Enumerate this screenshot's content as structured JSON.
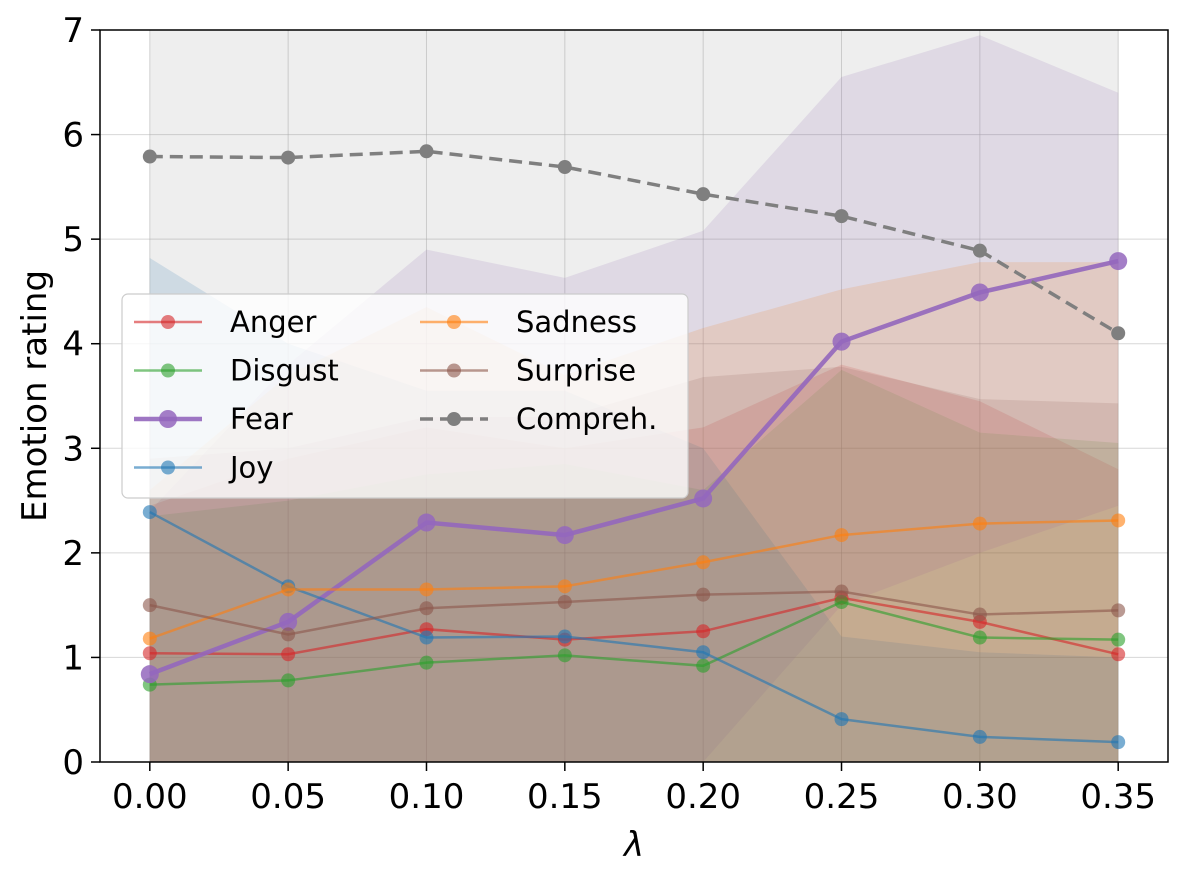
{
  "chart_data": {
    "type": "line",
    "title": "",
    "xlabel": "λ",
    "ylabel": "Emotion rating",
    "x": [
      0.0,
      0.05,
      0.1,
      0.15,
      0.2,
      0.25,
      0.3,
      0.35
    ],
    "x_tick_labels": [
      "0.00",
      "0.05",
      "0.10",
      "0.15",
      "0.20",
      "0.25",
      "0.30",
      "0.35"
    ],
    "y_tick_labels": [
      "0",
      "1",
      "2",
      "3",
      "4",
      "5",
      "6",
      "7"
    ],
    "xlim": [
      -0.018,
      0.368
    ],
    "ylim": [
      0,
      7
    ],
    "grid": true,
    "legend_position": "center-left",
    "legend_columns": 2,
    "series": [
      {
        "name": "Anger",
        "color": "#d62728",
        "values": [
          1.04,
          1.03,
          1.27,
          1.17,
          1.25,
          1.57,
          1.34,
          1.03
        ],
        "band_upper": [
          2.45,
          2.9,
          3.2,
          3.0,
          3.2,
          3.8,
          3.45,
          2.8
        ],
        "band_lower": [
          0,
          0,
          0,
          0,
          0,
          0,
          0,
          0
        ]
      },
      {
        "name": "Disgust",
        "color": "#2ca02c",
        "values": [
          0.74,
          0.78,
          0.95,
          1.02,
          0.92,
          1.53,
          1.19,
          1.17
        ],
        "band_upper": [
          2.35,
          2.5,
          2.75,
          2.85,
          2.6,
          3.75,
          3.15,
          3.05
        ],
        "band_lower": [
          0,
          0,
          0,
          0,
          0,
          0,
          0,
          0
        ]
      },
      {
        "name": "Fear",
        "color": "#9467bd",
        "values": [
          0.84,
          1.34,
          2.29,
          2.17,
          2.52,
          4.02,
          4.49,
          4.79
        ],
        "band_upper": [
          2.4,
          3.8,
          4.9,
          4.63,
          5.08,
          6.55,
          6.95,
          6.4
        ],
        "band_lower": [
          0,
          0,
          0,
          0,
          0,
          1.5,
          2.0,
          2.45
        ]
      },
      {
        "name": "Joy",
        "color": "#1f77b4",
        "values": [
          2.39,
          1.68,
          1.19,
          1.2,
          1.05,
          0.41,
          0.24,
          0.19
        ],
        "band_upper": [
          4.82,
          4.0,
          3.55,
          3.55,
          3.0,
          1.2,
          1.05,
          1.0
        ],
        "band_lower": [
          0,
          0,
          0,
          0,
          0,
          0,
          0,
          0
        ]
      },
      {
        "name": "Sadness",
        "color": "#ff7f0e",
        "values": [
          1.18,
          1.65,
          1.65,
          1.68,
          1.91,
          2.17,
          2.28,
          2.31
        ],
        "band_upper": [
          2.6,
          3.7,
          4.35,
          3.7,
          4.15,
          4.52,
          4.78,
          4.78
        ],
        "band_lower": [
          0,
          0,
          0,
          0,
          0,
          0,
          0,
          0
        ]
      },
      {
        "name": "Surprise",
        "color": "#8c564b",
        "values": [
          1.5,
          1.22,
          1.47,
          1.53,
          1.6,
          1.63,
          1.41,
          1.45
        ],
        "band_upper": [
          2.9,
          3.0,
          3.3,
          3.3,
          3.68,
          3.78,
          3.47,
          3.43
        ],
        "band_lower": [
          0,
          0,
          0,
          0,
          0,
          0,
          0,
          0
        ]
      },
      {
        "name": "Compreh.",
        "color": "#7f7f7f",
        "dashed": true,
        "values": [
          5.79,
          5.78,
          5.84,
          5.69,
          5.43,
          5.22,
          4.89,
          4.1
        ],
        "band_upper": [
          7,
          7,
          7,
          7,
          7,
          7,
          7,
          7
        ],
        "band_lower": [
          0,
          0,
          0,
          0,
          0,
          0,
          0,
          0
        ]
      }
    ]
  }
}
